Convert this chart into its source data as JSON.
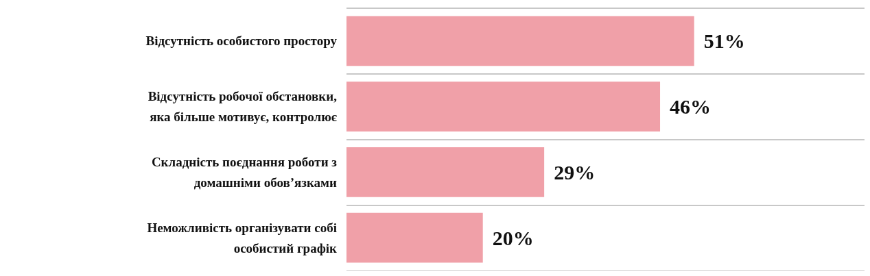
{
  "chart_data": {
    "type": "bar",
    "orientation": "horizontal",
    "categories": [
      "Відсутність особистого простору",
      "Відсутність робочої обстановки,\nяка більше мотивує, контролює",
      "Складність поєднання роботи з\nдомашніми обов’язками",
      "Неможливість організувати собі\nособистий графік"
    ],
    "values": [
      51,
      46,
      29,
      20
    ],
    "value_labels": [
      "51%",
      "46%",
      "29%",
      "20%"
    ],
    "color": "#f0a0a8",
    "grid": "y",
    "tick_labels": "y"
  }
}
